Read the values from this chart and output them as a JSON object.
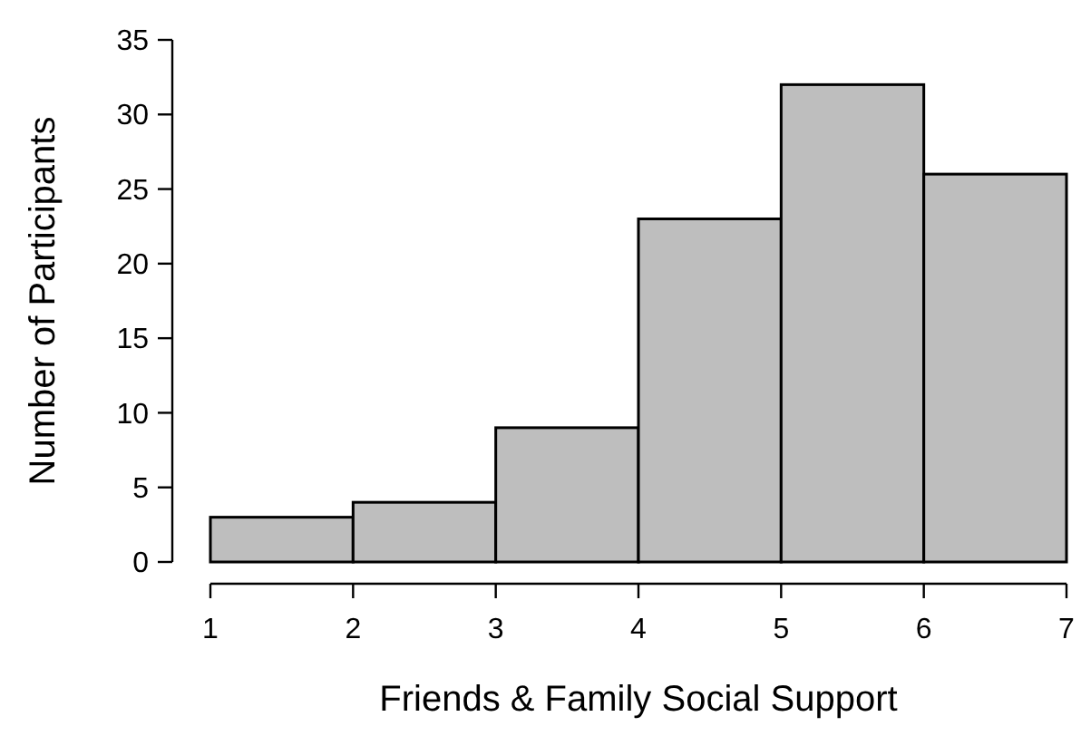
{
  "chart_data": {
    "type": "histogram",
    "xlabel": "Friends & Family Social Support",
    "ylabel": "Number of Participants",
    "bins": [
      1,
      2,
      3,
      4,
      5,
      6,
      7
    ],
    "values": [
      3,
      4,
      9,
      23,
      32,
      26
    ],
    "color": "#bebebe",
    "xlim": [
      1,
      7
    ],
    "xticks": [
      1,
      2,
      3,
      4,
      5,
      6,
      7
    ],
    "ylim": [
      0,
      35
    ],
    "yticks": [
      0,
      5,
      10,
      15,
      20,
      25,
      30,
      35
    ],
    "grid": false
  }
}
